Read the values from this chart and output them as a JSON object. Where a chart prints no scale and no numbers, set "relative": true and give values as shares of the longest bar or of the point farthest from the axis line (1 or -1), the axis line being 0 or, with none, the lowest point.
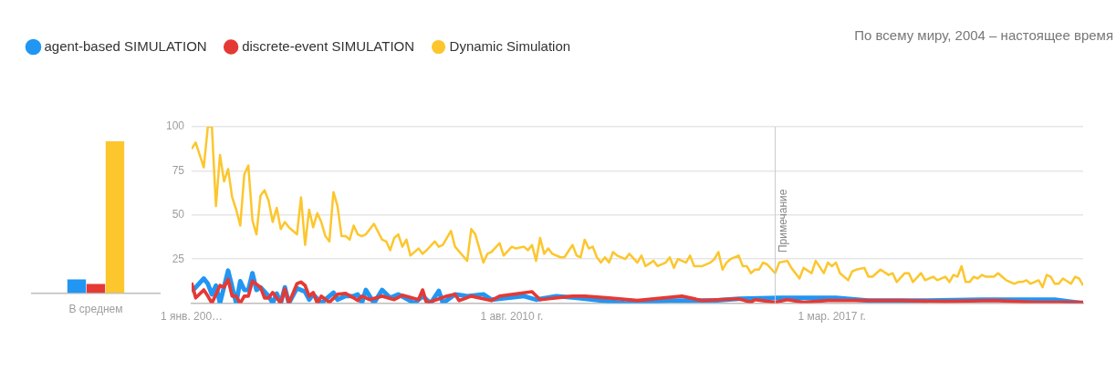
{
  "chart_data": [
    {
      "type": "bar",
      "relative": true,
      "categories": [
        "В среднем"
      ],
      "series": [
        {
          "color": "#2196f3",
          "values": [
            0.09
          ]
        },
        {
          "color": "#e53935",
          "values": [
            0.06
          ]
        },
        {
          "color": "#fcc62d",
          "values": [
            1
          ]
        }
      ]
    },
    {
      "type": "line",
      "subtitle": "По всему миру, 2004 – настоящее время",
      "legend": "top left",
      "grid": "y",
      "xlim": [
        "2004-01",
        "2022-05"
      ],
      "xticks": [
        {
          "value": "2004-01-01",
          "label": "1 янв. 200…"
        },
        {
          "value": "2010-08-01",
          "label": "1 авг. 2010 г."
        },
        {
          "value": "2017-03-01",
          "label": "1 мар. 2017 г."
        }
      ],
      "ylim": [
        0,
        100
      ],
      "yticks": [
        25,
        50,
        75,
        100
      ],
      "ref_lines": [
        {
          "axis": "x",
          "value": "2016-01",
          "label": "Примечание",
          "color": "#cccccc"
        }
      ],
      "series": [
        {
          "name": "agent-based SIMULATION",
          "color": "#2196f3",
          "x": [
            "2004-01",
            "2004-04",
            "2004-05",
            "2004-06",
            "2004-07",
            "2004-08",
            "2004-10",
            "2004-12",
            "2005-01",
            "2005-02",
            "2005-03",
            "2005-04",
            "2005-05",
            "2005-06",
            "2005-08",
            "2005-09",
            "2005-10",
            "2005-11",
            "2005-12",
            "2006-01",
            "2006-03",
            "2006-05",
            "2006-06",
            "2006-07",
            "2006-09",
            "2006-11",
            "2006-12",
            "2007-01",
            "2007-03",
            "2007-05",
            "2007-06",
            "2007-07",
            "2007-08",
            "2007-10",
            "2007-12",
            "2008-02",
            "2008-04",
            "2008-08",
            "2008-10",
            "2008-12",
            "2009-02",
            "2009-03",
            "2009-06",
            "2009-09",
            "2010-01",
            "2010-03",
            "2010-11",
            "2011-02",
            "2011-07",
            "2011-12",
            "2012-12",
            "2013-11",
            "2014-10",
            "2015-04",
            "2016-02",
            "2017-04",
            "2017-12",
            "2019-02",
            "2020-04",
            "2021-10",
            "2022-05"
          ],
          "values": [
            6.5,
            14,
            11,
            5,
            10,
            0,
            18.5,
            0,
            12.5,
            7.5,
            7.5,
            17,
            7.5,
            9,
            4,
            0,
            5.5,
            0,
            9,
            0,
            8.5,
            6.5,
            2,
            5,
            0,
            4,
            6,
            2,
            4,
            4,
            5,
            0,
            7.5,
            0,
            7.5,
            3,
            5,
            0,
            4,
            0,
            7,
            0,
            5,
            4,
            5,
            2,
            4,
            2,
            4,
            3,
            0,
            1.5,
            1.5,
            2.5,
            3,
            3,
            1.5,
            1.5,
            2,
            2,
            0
          ]
        },
        {
          "name": "discrete-event SIMULATION",
          "color": "#e53935",
          "x": [
            "2004-01",
            "2004-02",
            "2004-04",
            "2004-05",
            "2004-06",
            "2004-08",
            "2004-09",
            "2004-10",
            "2004-11",
            "2004-12",
            "2005-01",
            "2005-02",
            "2005-03",
            "2005-04",
            "2005-06",
            "2005-07",
            "2005-08",
            "2005-09",
            "2005-11",
            "2005-12",
            "2006-01",
            "2006-03",
            "2006-04",
            "2006-05",
            "2006-06",
            "2006-07",
            "2006-08",
            "2006-09",
            "2006-11",
            "2007-01",
            "2007-03",
            "2007-05",
            "2007-06",
            "2007-07",
            "2007-09",
            "2007-12",
            "2008-03",
            "2008-05",
            "2008-09",
            "2008-10",
            "2008-11",
            "2009-04",
            "2009-06",
            "2009-07",
            "2009-10",
            "2010-03",
            "2010-05",
            "2011-01",
            "2011-03",
            "2011-11",
            "2012-02",
            "2012-08",
            "2013-03",
            "2014-02",
            "2014-07",
            "2015-04",
            "2015-07",
            "2015-08",
            "2016-01",
            "2016-04",
            "2016-08",
            "2017-02",
            "2017-10",
            "2018-08",
            "2019-07",
            "2020-07",
            "2021-05",
            "2022-05"
          ],
          "values": [
            11.5,
            3,
            7.5,
            4,
            0,
            10,
            9,
            13.5,
            4,
            4,
            0,
            4,
            4,
            12.5,
            9,
            3,
            3,
            6,
            0,
            8,
            0,
            11,
            12,
            10,
            4,
            6,
            0,
            4,
            0.5,
            5,
            5.5,
            3,
            1.5,
            4,
            2,
            4,
            2,
            4.5,
            2,
            7.5,
            0,
            4,
            5,
            1.5,
            4,
            1.5,
            4,
            6.5,
            2,
            4,
            4,
            3,
            1.5,
            4,
            1.5,
            2.5,
            0.5,
            2,
            0.5,
            2,
            0.5,
            1.5,
            1.5,
            1.5,
            1,
            1.5,
            0.5,
            0.5
          ]
        },
        {
          "name": "Dynamic Simulation",
          "color": "#fcc62d",
          "x": [
            "2004-01",
            "2004-02",
            "2004-04",
            "2004-05",
            "2004-06",
            "2004-07",
            "2004-08",
            "2004-09",
            "2004-10",
            "2004-11",
            "2004-12",
            "2005-01",
            "2005-02",
            "2005-03",
            "2005-04",
            "2005-05",
            "2005-06",
            "2005-07",
            "2005-08",
            "2005-09",
            "2005-10",
            "2005-11",
            "2005-12",
            "2006-01",
            "2006-02",
            "2006-03",
            "2006-04",
            "2006-05",
            "2006-06",
            "2006-07",
            "2006-08",
            "2006-09",
            "2006-10",
            "2006-11",
            "2006-12",
            "2007-01",
            "2007-02",
            "2007-03",
            "2007-04",
            "2007-05",
            "2007-06",
            "2007-07",
            "2007-08",
            "2007-10",
            "2007-12",
            "2008-01",
            "2008-02",
            "2008-03",
            "2008-04",
            "2008-05",
            "2008-06",
            "2008-07",
            "2008-09",
            "2008-10",
            "2008-11",
            "2009-01",
            "2009-02",
            "2009-03",
            "2009-05",
            "2009-06",
            "2009-09",
            "2009-10",
            "2009-11",
            "2010-01",
            "2010-02",
            "2010-03",
            "2010-05",
            "2010-06",
            "2010-08",
            "2010-09",
            "2010-11",
            "2010-12",
            "2011-01",
            "2011-02",
            "2011-03",
            "2011-04",
            "2011-05",
            "2011-06",
            "2011-08",
            "2011-09",
            "2011-11",
            "2011-12",
            "2012-01",
            "2012-02",
            "2012-03",
            "2012-04",
            "2012-05",
            "2012-06",
            "2012-07",
            "2012-08",
            "2012-09",
            "2012-10",
            "2012-12",
            "2013-01",
            "2013-03",
            "2013-04",
            "2013-05",
            "2013-07",
            "2013-08",
            "2013-10",
            "2013-11",
            "2013-12",
            "2014-01",
            "2014-03",
            "2014-04",
            "2014-05",
            "2014-07",
            "2014-09",
            "2014-10",
            "2014-11",
            "2014-12",
            "2015-01",
            "2015-02",
            "2015-04",
            "2015-05",
            "2015-06",
            "2015-07",
            "2015-08",
            "2015-09",
            "2015-10",
            "2015-11",
            "2016-01",
            "2016-02",
            "2016-04",
            "2016-05",
            "2016-07",
            "2016-08",
            "2016-10",
            "2016-11",
            "2017-01",
            "2017-02",
            "2017-03",
            "2017-04",
            "2017-05",
            "2017-07",
            "2017-08",
            "2017-09",
            "2017-11",
            "2017-12",
            "2018-01",
            "2018-03",
            "2018-05",
            "2018-06",
            "2018-07",
            "2018-09",
            "2018-10",
            "2018-11",
            "2019-01",
            "2019-02",
            "2019-04",
            "2019-05",
            "2019-07",
            "2019-08",
            "2019-09",
            "2019-10",
            "2019-11",
            "2019-12",
            "2020-01",
            "2020-02",
            "2020-03",
            "2020-04",
            "2020-05",
            "2020-07",
            "2020-08",
            "2020-09",
            "2020-10",
            "2020-12",
            "2021-01",
            "2021-02",
            "2021-03",
            "2021-04",
            "2021-06",
            "2021-07",
            "2021-08",
            "2021-09",
            "2021-10",
            "2021-11",
            "2021-12",
            "2022-02",
            "2022-03",
            "2022-04",
            "2022-05"
          ],
          "values": [
            87.5,
            91,
            77,
            100,
            100,
            55,
            84,
            69,
            76,
            60,
            53,
            44,
            73,
            78,
            47,
            39,
            61,
            64,
            58,
            46,
            54,
            42,
            46,
            43,
            41,
            39,
            60,
            33,
            53,
            43,
            51,
            46,
            38,
            35,
            63,
            55,
            38,
            38,
            36,
            44,
            39,
            38,
            39,
            45,
            36,
            35,
            30,
            37,
            39,
            32,
            36,
            27,
            31,
            28,
            30,
            35,
            32,
            33,
            41,
            32,
            24,
            42,
            39,
            23,
            28,
            29,
            34,
            27,
            32,
            31,
            32,
            30,
            33,
            24,
            37,
            28,
            31,
            28,
            26,
            26,
            33,
            27,
            26,
            36,
            31,
            32,
            26,
            23,
            26,
            23,
            29,
            27,
            25,
            28,
            23,
            27,
            21,
            24,
            21,
            23,
            26,
            20,
            25,
            23,
            27,
            21,
            21,
            23,
            25,
            29,
            19,
            23,
            25,
            27,
            21,
            21,
            17,
            19,
            19,
            23,
            22,
            17,
            23,
            24,
            20,
            14,
            20,
            17,
            24,
            17,
            23,
            21,
            23,
            17,
            13,
            18,
            19,
            20,
            15,
            15,
            19,
            16,
            17,
            12,
            17,
            17,
            12,
            17,
            13,
            15,
            13,
            15,
            12,
            16,
            15,
            21,
            12,
            12,
            15,
            14,
            16,
            15,
            15,
            17,
            15,
            13,
            11,
            12,
            12,
            13,
            11,
            13,
            9,
            16,
            15,
            11,
            11,
            14,
            11,
            15,
            14,
            10
          ]
        }
      ]
    }
  ]
}
